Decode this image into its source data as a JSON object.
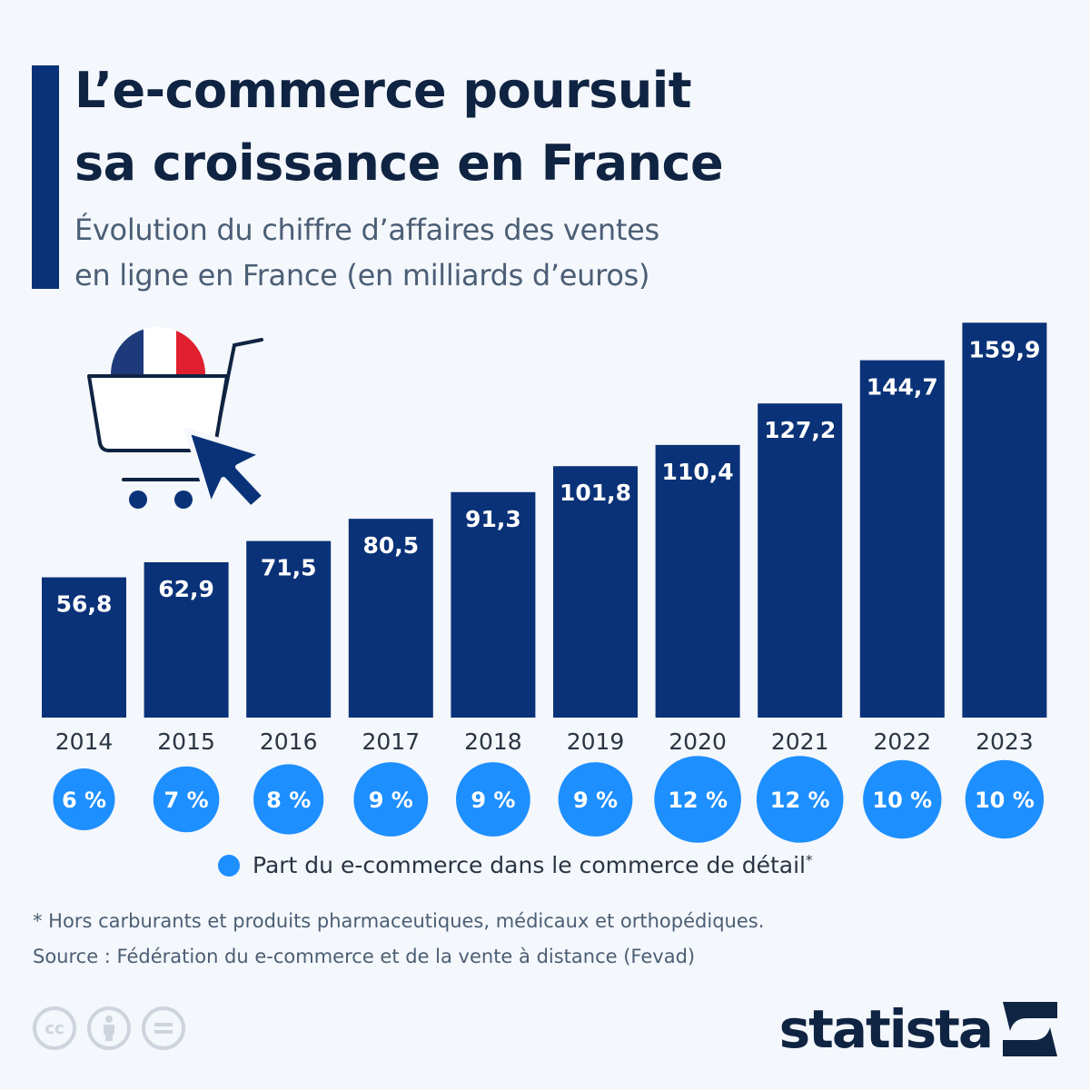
{
  "header": {
    "title_line1": "L’e-commerce poursuit",
    "title_line2": "sa croissance en France",
    "subtitle_line1": "Évolution du chiffre d’affaires des ventes",
    "subtitle_line2": "en ligne en France (en milliards d’euros)"
  },
  "colors": {
    "bar": "#0a3278",
    "bubble": "#1e8fff",
    "accent": "#0a3278",
    "title": "#0f2342",
    "flag_blue": "#1f3a7a",
    "flag_red": "#e0202f"
  },
  "chart_data": {
    "type": "bar",
    "title": "L’e-commerce poursuit sa croissance en France",
    "subtitle": "Évolution du chiffre d’affaires des ventes en ligne en France (en milliards d’euros)",
    "categories": [
      "2014",
      "2015",
      "2016",
      "2017",
      "2018",
      "2019",
      "2020",
      "2021",
      "2022",
      "2023"
    ],
    "values": [
      56.8,
      62.9,
      71.5,
      80.5,
      91.3,
      101.8,
      110.4,
      127.2,
      144.7,
      159.9
    ],
    "value_labels": [
      "56,8",
      "62,9",
      "71,5",
      "80,5",
      "91,3",
      "101,8",
      "110,4",
      "127,2",
      "144,7",
      "159,9"
    ],
    "secondary_series": {
      "name": "Part du e-commerce dans le commerce de détail",
      "values": [
        6,
        7,
        8,
        9,
        9,
        9,
        12,
        12,
        10,
        10
      ],
      "labels": [
        "6 %",
        "7 %",
        "8 %",
        "9 %",
        "9 %",
        "9 %",
        "12 %",
        "12 %",
        "10 %",
        "10 %"
      ]
    },
    "xlabel": "",
    "ylabel": "",
    "ylim": [
      0,
      160
    ],
    "grid": false,
    "legend": "bottom"
  },
  "legend": {
    "label": "Part du e-commerce dans le commerce de détail",
    "marker": "*"
  },
  "footer": {
    "footnote": "* Hors carburants et produits pharmaceutiques, médicaux et orthopédiques.",
    "source": "Source : Fédération du e-commerce et de la vente à distance (Fevad)",
    "brand": "statista",
    "license_icons": [
      "cc-icon",
      "attribution-icon",
      "no-derivatives-icon"
    ]
  }
}
